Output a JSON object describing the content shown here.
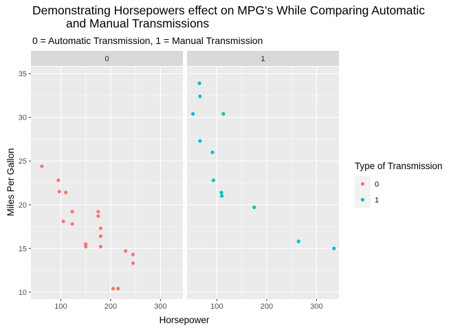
{
  "chart_data": {
    "type": "scatter",
    "title": "Demonstrating Horsepowers effect on MPG's While Comparing Automatic and Manual Transmissions",
    "title_lines": [
      "Demonstrating Horsepowers effect on MPG's While Comparing Automatic",
      "and Manual Transmissions"
    ],
    "subtitle": "0 = Automatic Transmission, 1 = Manual Transmission",
    "xlabel": "Horsepower",
    "ylabel": "Miles Per Gallon",
    "xlim": [
      40,
      345
    ],
    "ylim": [
      9.2,
      35.8
    ],
    "x_ticks": [
      100,
      200,
      300
    ],
    "y_ticks": [
      10,
      15,
      20,
      25,
      30,
      35
    ],
    "grid": true,
    "legend": {
      "title": "Type of Transmission",
      "position": "right",
      "entries": [
        {
          "label": "0",
          "color": "#F8766D"
        },
        {
          "label": "1",
          "color": "#00BFC4"
        }
      ]
    },
    "facets": [
      {
        "strip": "0",
        "color": "#F8766D",
        "points": [
          {
            "x": 62,
            "y": 24.4
          },
          {
            "x": 95,
            "y": 22.8
          },
          {
            "x": 97,
            "y": 21.5
          },
          {
            "x": 110,
            "y": 21.4
          },
          {
            "x": 105,
            "y": 18.1
          },
          {
            "x": 123,
            "y": 19.2
          },
          {
            "x": 123,
            "y": 17.8
          },
          {
            "x": 150,
            "y": 15.5
          },
          {
            "x": 150,
            "y": 15.2
          },
          {
            "x": 175,
            "y": 19.2
          },
          {
            "x": 175,
            "y": 18.7
          },
          {
            "x": 180,
            "y": 17.3
          },
          {
            "x": 180,
            "y": 16.4
          },
          {
            "x": 180,
            "y": 15.2
          },
          {
            "x": 205,
            "y": 10.4
          },
          {
            "x": 215,
            "y": 10.4
          },
          {
            "x": 230,
            "y": 14.7
          },
          {
            "x": 245,
            "y": 14.3
          },
          {
            "x": 245,
            "y": 13.3
          }
        ]
      },
      {
        "strip": "1",
        "color": "#00BFC4",
        "points": [
          {
            "x": 52,
            "y": 30.4
          },
          {
            "x": 65,
            "y": 33.9
          },
          {
            "x": 66,
            "y": 32.4
          },
          {
            "x": 66,
            "y": 27.3
          },
          {
            "x": 91,
            "y": 26.0
          },
          {
            "x": 93,
            "y": 22.8
          },
          {
            "x": 109,
            "y": 21.4
          },
          {
            "x": 110,
            "y": 21.0
          },
          {
            "x": 113,
            "y": 30.4
          },
          {
            "x": 175,
            "y": 19.7
          },
          {
            "x": 264,
            "y": 15.8
          },
          {
            "x": 335,
            "y": 15.0
          }
        ]
      }
    ]
  }
}
